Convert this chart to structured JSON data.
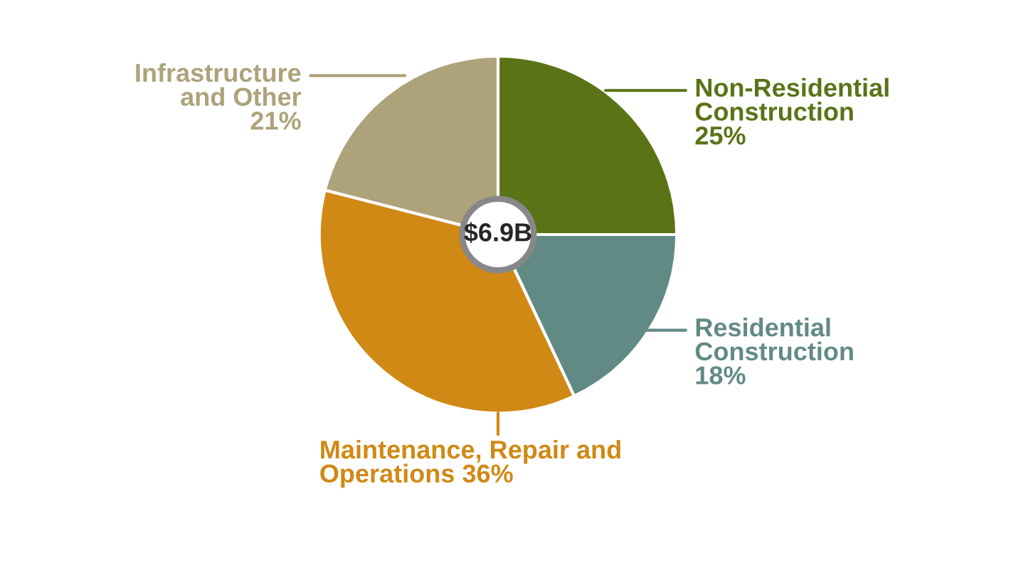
{
  "chart_data": {
    "type": "pie",
    "categories": [
      "Non-Residential Construction",
      "Residential Construction",
      "Maintenance, Repair and Operations",
      "Infrastructure and Other"
    ],
    "values": [
      25,
      18,
      36,
      21
    ],
    "value_labels": [
      "25%",
      "18%",
      "36%",
      "21%"
    ],
    "colors": [
      "#5a7317",
      "#628a84",
      "#d08915",
      "#ada27a"
    ],
    "annotations": [
      "$6.9B"
    ],
    "legend": false
  }
}
